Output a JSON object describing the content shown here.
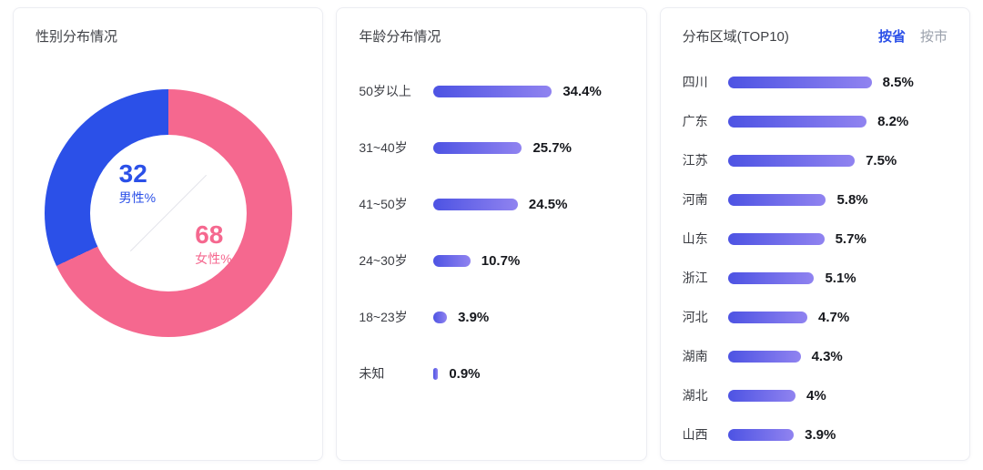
{
  "colors": {
    "accent_blue": "#2b50e8",
    "accent_pink": "#f5688f",
    "bar_gradient": [
      "#4d53e3",
      "#9083f0"
    ],
    "inactive_tab": "#9aa0ab"
  },
  "chart_data": [
    {
      "type": "pie",
      "title": "性别分布情况",
      "donut": true,
      "slices": [
        {
          "label": "男性%",
          "display": "32",
          "value": 32,
          "color": "#2b50e8"
        },
        {
          "label": "女性%",
          "display": "68",
          "value": 68,
          "color": "#f5688f"
        }
      ]
    },
    {
      "type": "bar",
      "orientation": "horizontal",
      "title": "年龄分布情况",
      "categories": [
        "50岁以上",
        "31~40岁",
        "41~50岁",
        "24~30岁",
        "18~23岁",
        "未知"
      ],
      "values": [
        34.4,
        25.7,
        24.5,
        10.7,
        3.9,
        0.9
      ],
      "value_labels": [
        "34.4%",
        "25.7%",
        "24.5%",
        "10.7%",
        "3.9%",
        "0.9%"
      ],
      "xlim": [
        0,
        34.4
      ]
    },
    {
      "type": "bar",
      "orientation": "horizontal",
      "title": "分布区域(TOP10)",
      "tabs": [
        "按省",
        "按市"
      ],
      "active_tab": "按省",
      "categories": [
        "四川",
        "广东",
        "江苏",
        "河南",
        "山东",
        "浙江",
        "河北",
        "湖南",
        "湖北",
        "山西"
      ],
      "values": [
        8.5,
        8.2,
        7.5,
        5.8,
        5.7,
        5.1,
        4.7,
        4.3,
        4,
        3.9
      ],
      "value_labels": [
        "8.5%",
        "8.2%",
        "7.5%",
        "5.8%",
        "5.7%",
        "5.1%",
        "4.7%",
        "4.3%",
        "4%",
        "3.9%"
      ],
      "xlim": [
        0,
        8.5
      ]
    }
  ]
}
